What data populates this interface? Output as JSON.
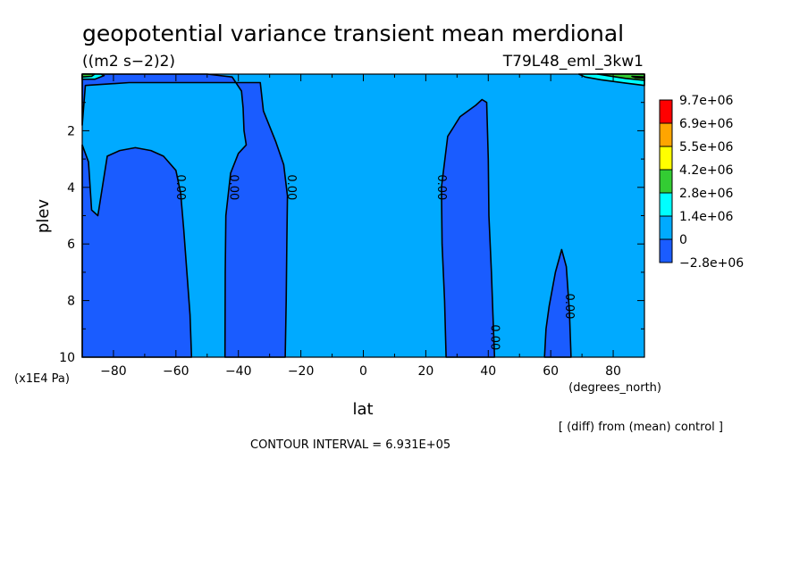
{
  "chart_data": {
    "type": "contour",
    "title": "geopotential variance transient mean merdional",
    "units": "((m2 s−2)2)",
    "run_label": "T79L48_eml_3kw1",
    "xlabel": "lat",
    "x_units": "(degrees_north)",
    "ylabel": "plev",
    "y_units": "(x1E4 Pa)",
    "xlim": [
      -90,
      90
    ],
    "ylim": [
      10,
      0
    ],
    "x_ticks": [
      -80,
      -60,
      -40,
      -20,
      0,
      20,
      40,
      80
    ],
    "x_tick_labels": [
      "−80",
      "−60",
      "−40",
      "−20",
      "0",
      "20",
      "40",
      "80"
    ],
    "x_ticks_extra": [
      60
    ],
    "x_tick_labels_extra": [
      "60"
    ],
    "y_ticks": [
      2,
      4,
      6,
      8,
      10
    ],
    "y_tick_labels": [
      "2",
      "4",
      "6",
      "8",
      "10"
    ],
    "contour_interval_text": "CONTOUR INTERVAL = 6.931E+05",
    "note": "[ (diff) from (mean) control ]",
    "zero_contour_label": "0.00",
    "zero_label_positions": [
      {
        "x": -58.5,
        "y": 4.0
      },
      {
        "x": -41.5,
        "y": 4.0
      },
      {
        "x": -23,
        "y": 4.0
      },
      {
        "x": 25,
        "y": 4.0
      },
      {
        "x": 42,
        "y": 9.3
      },
      {
        "x": 66,
        "y": 8.2
      }
    ],
    "legend": {
      "labels": [
        "9.7e+06",
        "6.9e+06",
        "5.5e+06",
        "4.2e+06",
        "2.8e+06",
        "1.4e+06",
        "0",
        "−2.8e+06"
      ],
      "colors": [
        "#ff0000",
        "#ffa500",
        "#ffff00",
        "#33cc33",
        "#00ffff",
        "#00aaff",
        "#1a5cff"
      ]
    },
    "regions": [
      {
        "level": "negative",
        "color": "#1a5cff",
        "polygon": [
          [
            -90,
            10
          ],
          [
            -90,
            2.5
          ],
          [
            -88,
            3.1
          ],
          [
            -87,
            4.8
          ],
          [
            -85,
            5
          ],
          [
            -82,
            2.9
          ],
          [
            -78,
            2.7
          ],
          [
            -73,
            2.6
          ],
          [
            -68,
            2.7
          ],
          [
            -64,
            2.9
          ],
          [
            -60,
            3.4
          ],
          [
            -58.5,
            4.2
          ],
          [
            -57.5,
            5.5
          ],
          [
            -56.5,
            7
          ],
          [
            -55.5,
            8.5
          ],
          [
            -55,
            10
          ]
        ]
      },
      {
        "level": "negative",
        "color": "#1a5cff",
        "polygon": [
          [
            -90,
            1.8
          ],
          [
            -90,
            0
          ],
          [
            -50,
            0
          ],
          [
            -42,
            0.1
          ],
          [
            -39,
            0.6
          ],
          [
            -38.5,
            1.2
          ],
          [
            -38.2,
            2
          ],
          [
            -37.5,
            2.5
          ],
          [
            -40,
            2.8
          ],
          [
            -42.5,
            3.5
          ],
          [
            -44,
            5
          ],
          [
            -44.2,
            7
          ],
          [
            -44.3,
            10
          ],
          [
            -25,
            10
          ],
          [
            -24.7,
            8
          ],
          [
            -24.5,
            6
          ],
          [
            -24.3,
            4.3
          ],
          [
            -25.5,
            3.2
          ],
          [
            -28,
            2.4
          ],
          [
            -32,
            1.3
          ],
          [
            -33,
            0.3
          ],
          [
            -50,
            0.3
          ],
          [
            -75,
            0.3
          ],
          [
            -89,
            0.4
          ]
        ]
      },
      {
        "level": "negative",
        "color": "#1a5cff",
        "polygon": [
          [
            26.5,
            10
          ],
          [
            26,
            8
          ],
          [
            25.2,
            6
          ],
          [
            25,
            4
          ],
          [
            27,
            2.2
          ],
          [
            31,
            1.5
          ],
          [
            36,
            1.1
          ],
          [
            38,
            0.9
          ],
          [
            39.5,
            1
          ],
          [
            40,
            3
          ],
          [
            40.2,
            5
          ],
          [
            41,
            7
          ],
          [
            41.5,
            8.5
          ],
          [
            42,
            10
          ]
        ]
      },
      {
        "level": "negative",
        "color": "#1a5cff",
        "polygon": [
          [
            58,
            10
          ],
          [
            58.5,
            9
          ],
          [
            59.5,
            8.2
          ],
          [
            61.5,
            7
          ],
          [
            63.5,
            6.2
          ],
          [
            65,
            6.8
          ],
          [
            66,
            8.4
          ],
          [
            66.5,
            10
          ]
        ]
      },
      {
        "level": "positive",
        "color": "#00ffff",
        "polygon": [
          [
            -90,
            0.18
          ],
          [
            -90,
            0
          ],
          [
            -84,
            0
          ],
          [
            -83,
            0.05
          ],
          [
            -86,
            0.18
          ]
        ]
      },
      {
        "level": "positive",
        "color": "#00ffff",
        "polygon": [
          [
            69,
            0
          ],
          [
            90,
            0
          ],
          [
            90,
            0.4
          ],
          [
            84,
            0.32
          ],
          [
            76,
            0.2
          ],
          [
            71,
            0.1
          ]
        ]
      },
      {
        "level": "positive",
        "color": "#33cc33",
        "polygon": [
          [
            -90,
            0.1
          ],
          [
            -90,
            0
          ],
          [
            -86,
            0
          ],
          [
            -87,
            0.08
          ]
        ]
      },
      {
        "level": "positive",
        "color": "#33cc33",
        "polygon": [
          [
            75,
            0
          ],
          [
            90,
            0
          ],
          [
            90,
            0.22
          ],
          [
            84,
            0.15
          ],
          [
            79,
            0.07
          ]
        ]
      },
      {
        "level": "positive",
        "color": "#ffff00",
        "polygon": [
          [
            86,
            0.08
          ],
          [
            90,
            0.1
          ],
          [
            90,
            0.14
          ],
          [
            87,
            0.12
          ]
        ]
      }
    ]
  }
}
